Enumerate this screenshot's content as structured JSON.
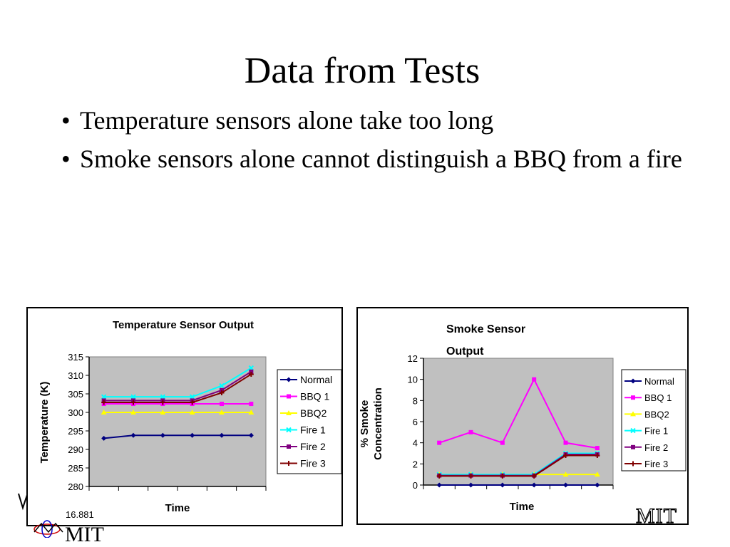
{
  "slide": {
    "title": "Data from Tests",
    "bullets": [
      "Temperature sensors alone take too long",
      "Smoke sensors alone cannot distinguish a BBQ from a fire"
    ]
  },
  "footer": {
    "course_code": "16.881",
    "mit_left": "MIT",
    "mit_right": "MIT"
  },
  "colors": {
    "plot_bg": "#c0c0c0",
    "normal": "#000080",
    "bbq1": "#ff00ff",
    "bbq2": "#ffff00",
    "fire1": "#00ffff",
    "fire2": "#800080",
    "fire3": "#800000"
  },
  "chart_data": [
    {
      "type": "line",
      "title": "Temperature Sensor Output",
      "xlabel": "Time",
      "ylabel": "Temperature (K)",
      "ylim": [
        280,
        315
      ],
      "yticks": [
        280,
        285,
        290,
        295,
        300,
        305,
        310,
        315
      ],
      "x": [
        1,
        2,
        3,
        4,
        5,
        6
      ],
      "grid": false,
      "legend_position": "right",
      "series": [
        {
          "name": "Normal",
          "color": "#000080",
          "marker": "diamond",
          "values": [
            293,
            293.8,
            293.8,
            293.8,
            293.8,
            293.8
          ]
        },
        {
          "name": "BBQ 1",
          "color": "#ff00ff",
          "marker": "square",
          "values": [
            302.3,
            302.3,
            302.3,
            302.3,
            302.3,
            302.3
          ]
        },
        {
          "name": "BBQ2",
          "color": "#ffff00",
          "marker": "triangle",
          "values": [
            300,
            300,
            300,
            300,
            300,
            300
          ]
        },
        {
          "name": "Fire 1",
          "color": "#00ffff",
          "marker": "x",
          "values": [
            304.2,
            304.2,
            304.2,
            304.2,
            307.2,
            312
          ]
        },
        {
          "name": "Fire 2",
          "color": "#800080",
          "marker": "square",
          "values": [
            303.2,
            303.2,
            303.2,
            303.2,
            306,
            311
          ]
        },
        {
          "name": "Fire 3",
          "color": "#800000",
          "marker": "plus",
          "values": [
            302.7,
            302.7,
            302.7,
            302.7,
            305.3,
            310.3
          ]
        }
      ]
    },
    {
      "type": "line",
      "title": "Smoke Sensor Output",
      "xlabel": "Time",
      "ylabel": "% Smoke Concentration",
      "ylim": [
        0,
        12
      ],
      "yticks": [
        0,
        2,
        4,
        6,
        8,
        10,
        12
      ],
      "x": [
        1,
        2,
        3,
        4,
        5,
        6
      ],
      "grid": false,
      "legend_position": "right",
      "series": [
        {
          "name": "Normal",
          "color": "#000080",
          "marker": "diamond",
          "values": [
            0,
            0,
            0,
            0,
            0,
            0
          ]
        },
        {
          "name": "BBQ 1",
          "color": "#ff00ff",
          "marker": "square",
          "values": [
            4,
            5,
            4,
            10,
            4,
            3.5
          ]
        },
        {
          "name": "BBQ2",
          "color": "#ffff00",
          "marker": "triangle",
          "values": [
            1,
            1,
            1,
            1,
            1,
            1
          ]
        },
        {
          "name": "Fire 1",
          "color": "#00ffff",
          "marker": "x",
          "values": [
            1,
            1,
            1,
            1,
            3,
            3
          ]
        },
        {
          "name": "Fire 2",
          "color": "#800080",
          "marker": "square",
          "values": [
            0.9,
            0.9,
            0.9,
            0.9,
            2.9,
            2.9
          ]
        },
        {
          "name": "Fire 3",
          "color": "#800000",
          "marker": "plus",
          "values": [
            0.85,
            0.85,
            0.85,
            0.85,
            2.8,
            2.8
          ]
        }
      ]
    }
  ]
}
